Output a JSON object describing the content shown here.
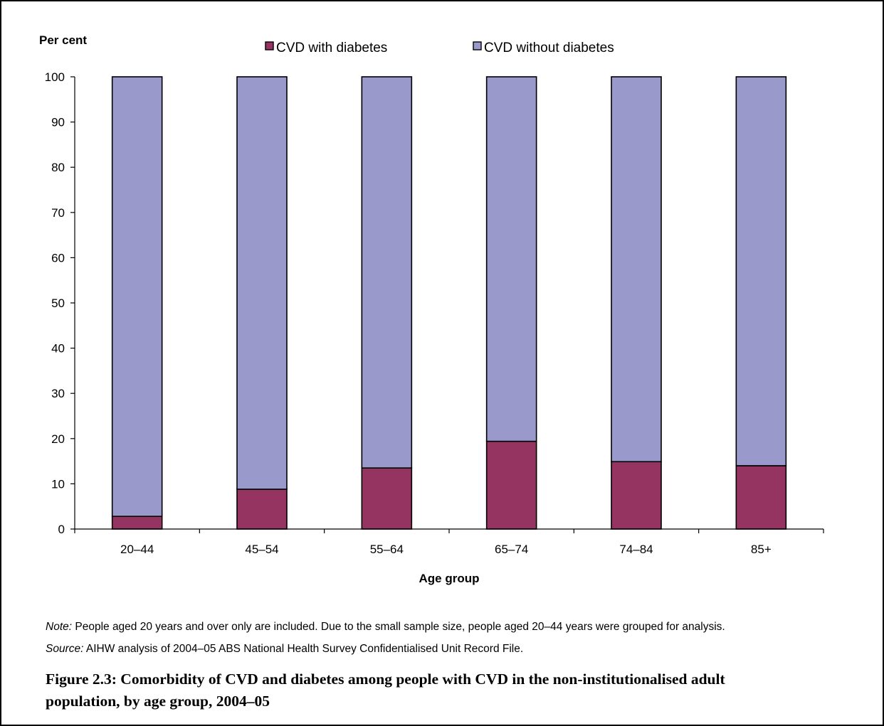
{
  "chart_data": {
    "type": "bar",
    "stacked": true,
    "ylabel": "Per cent",
    "xlabel": "Age group",
    "ylim": [
      0,
      100
    ],
    "yticks": [
      0,
      10,
      20,
      30,
      40,
      50,
      60,
      70,
      80,
      90,
      100
    ],
    "categories": [
      "20–44",
      "45–54",
      "55–64",
      "65–74",
      "74–84",
      "85+"
    ],
    "series": [
      {
        "name": "CVD with diabetes",
        "color": "#953461",
        "values": [
          2.8,
          8.8,
          13.5,
          19.4,
          14.9,
          14.0
        ]
      },
      {
        "name": "CVD without diabetes",
        "color": "#9999cc",
        "values": [
          97.2,
          91.2,
          86.5,
          80.6,
          85.1,
          86.0
        ]
      }
    ],
    "legend_position": "top",
    "grid": false
  },
  "note": {
    "label": "Note:",
    "text": " People aged 20 years and over only are included. Due to the small sample size, people aged 20–44 years were grouped for analysis."
  },
  "source": {
    "label": "Source:",
    "text": " AIHW analysis of 2004–05 ABS National Health Survey Confidentialised Unit Record File."
  },
  "caption": "Figure 2.3: Comorbidity of CVD and diabetes among people with CVD in the non-institutionalised adult population, by age group, 2004–05"
}
